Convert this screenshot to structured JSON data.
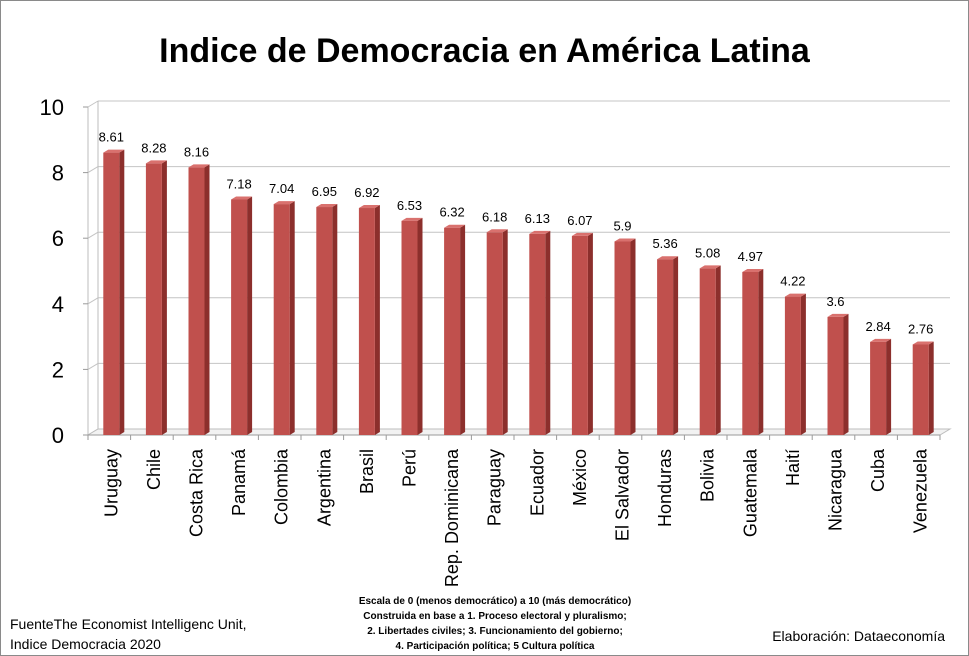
{
  "chart_data": {
    "type": "bar",
    "title": "Indice de Democracia en América Latina",
    "categories": [
      "Uruguay",
      "Chile",
      "Costa Rica",
      "Panamá",
      "Colombia",
      "Argentina",
      "Brasil",
      "Perú",
      "Rep. Dominicana",
      "Paraguay",
      "Ecuador",
      "México",
      "El Salvador",
      "Honduras",
      "Bolivia",
      "Guatemala",
      "Haití",
      "Nicaragua",
      "Cuba",
      "Venezuela"
    ],
    "values": [
      8.61,
      8.28,
      8.16,
      7.18,
      7.04,
      6.95,
      6.92,
      6.53,
      6.32,
      6.18,
      6.13,
      6.07,
      5.9,
      5.36,
      5.08,
      4.97,
      4.22,
      3.6,
      2.84,
      2.76
    ],
    "value_labels": [
      "8.61",
      "8.28",
      "8.16",
      "7.18",
      "7.04",
      "6.95",
      "6.92",
      "6.53",
      "6.32",
      "6.18",
      "6.13",
      "6.07",
      "5.9",
      "5.36",
      "5.08",
      "4.97",
      "4.22",
      "3.6",
      "2.84",
      "2.76"
    ],
    "yticks": [
      "0",
      "2",
      "4",
      "6",
      "8",
      "10"
    ],
    "ylim": [
      0,
      10
    ],
    "grid": true,
    "legend": "none",
    "bar_color": "#c0504d",
    "bar_side_color": "#8c2f2c",
    "bar_top_color": "#d9716e"
  },
  "footer": {
    "source_line1": "FuenteThe Economist Intelligenc Unit,",
    "source_line2": "Indice Democracia 2020",
    "method_line1": "Escala de 0 (menos democrático) a 10 (más democrático)",
    "method_line2": "Construida en base a 1. Proceso electoral y pluralismo;",
    "method_line3": "2. Libertades civiles; 3. Funcionamiento del gobierno;",
    "method_line4": "4. Participación política; 5 Cultura política",
    "credit": "Elaboración: Dataeconomía"
  }
}
